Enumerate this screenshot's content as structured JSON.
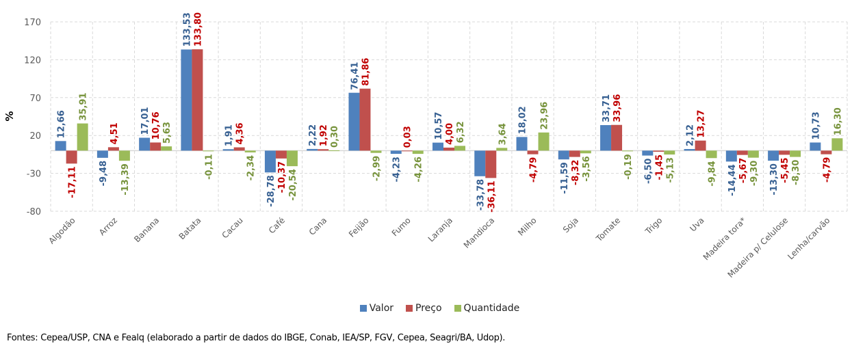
{
  "chart_data": {
    "type": "bar",
    "title": "",
    "xlabel": "",
    "ylabel": "%",
    "ylim": [
      -80,
      170
    ],
    "yticks": [
      170,
      120,
      70,
      20,
      -30,
      -80
    ],
    "grid": true,
    "legend_position": "bottom",
    "categories": [
      "Algodão",
      "Arroz",
      "Banana",
      "Batata",
      "Cacau",
      "Café",
      "Cana",
      "Feijão",
      "Fumo",
      "Laranja",
      "Mandioca",
      "Milho",
      "Soja",
      "Tomate",
      "Trigo",
      "Uva",
      "Madeira tora*",
      "Madeira p/ Celulose",
      "Lenha/carvão"
    ],
    "series": [
      {
        "name": "Valor",
        "color": "#4F81BD",
        "label_color": "#376092",
        "values": [
          12.66,
          -9.48,
          17.01,
          133.53,
          1.91,
          -28.78,
          2.22,
          76.41,
          -4.23,
          10.57,
          -33.78,
          18.02,
          -11.59,
          33.71,
          -6.5,
          2.12,
          -14.44,
          -13.3,
          10.73
        ],
        "labels": [
          "12,66",
          "-9,48",
          "17,01",
          "133,53",
          "1,91",
          "-28,78",
          "2,22",
          "76,41",
          "-4,23",
          "10,57",
          "-33,78",
          "18,02",
          "-11,59",
          "33,71",
          "-6,50",
          "2,12",
          "-14,44",
          "-13,30",
          "10,73"
        ]
      },
      {
        "name": "Preço",
        "color": "#C0504D",
        "label_color": "#C00000",
        "values": [
          -17.11,
          4.51,
          10.76,
          133.8,
          4.36,
          -10.37,
          1.92,
          81.86,
          0.03,
          4.0,
          -36.11,
          -4.79,
          -8.32,
          33.96,
          -1.45,
          13.27,
          -5.67,
          -5.45,
          -4.79
        ],
        "labels": [
          "-17,11",
          "4,51",
          "10,76",
          "133,80",
          "4,36",
          "-10,37",
          "1,92",
          "81,86",
          "0,03",
          "4,00",
          "-36,11",
          "-4,79",
          "-8,32",
          "33,96",
          "-1,45",
          "13,27",
          "-5,67",
          "-5,45",
          "-4,79"
        ]
      },
      {
        "name": "Quantidade",
        "color": "#9BBB59",
        "label_color": "#77933C",
        "values": [
          35.91,
          -13.39,
          5.63,
          -0.11,
          -2.34,
          -20.54,
          0.3,
          -2.99,
          -4.26,
          6.32,
          3.64,
          23.96,
          -3.56,
          -0.19,
          -5.13,
          -9.84,
          -9.3,
          -8.3,
          16.3
        ],
        "labels": [
          "35,91",
          "-13,39",
          "5,63",
          "-0,11",
          "-2,34",
          "-20,54",
          "0,30",
          "-2,99",
          "-4,26",
          "6,32",
          "3,64",
          "23,96",
          "-3,56",
          "-0,19",
          "-5,13",
          "-9,84",
          "-9,30",
          "-8,30",
          "16,30"
        ]
      }
    ]
  },
  "source": "Fontes: Cepea/USP, CNA e Fealq (elaborado a partir de dados do IBGE, Conab, IEA/SP, FGV, Cepea, Seagri/BA, Udop)."
}
